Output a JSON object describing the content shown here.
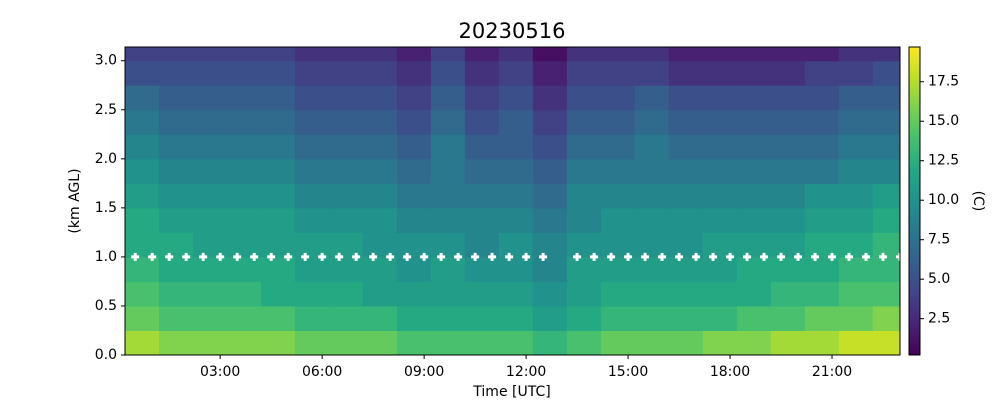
{
  "chart_data": {
    "type": "heatmap",
    "title": "20230516",
    "x_label": "Time [UTC]",
    "y_label": "(km AGL)",
    "colorbar_label": "(C)",
    "colormap": "viridis",
    "x": [
      0.7,
      1.7,
      2.7,
      3.7,
      4.7,
      5.7,
      6.7,
      7.7,
      8.7,
      9.7,
      10.7,
      11.7,
      12.7,
      13.7,
      14.7,
      15.7,
      16.7,
      17.7,
      18.7,
      19.7,
      20.7,
      21.7,
      22.7
    ],
    "y": [
      0.125,
      0.375,
      0.625,
      0.875,
      1.125,
      1.375,
      1.625,
      1.875,
      2.125,
      2.375,
      2.625,
      2.875,
      3.125
    ],
    "z": [
      [
        17,
        16,
        16,
        16,
        16,
        15,
        15,
        15,
        14,
        14,
        14,
        14,
        13,
        14,
        15,
        15,
        15,
        16,
        16,
        17,
        17,
        18,
        18
      ],
      [
        15,
        14,
        14,
        14,
        14,
        13,
        13,
        13,
        12,
        12,
        12,
        12,
        11,
        12,
        13,
        13,
        13,
        13,
        14,
        14,
        15,
        15,
        16
      ],
      [
        14,
        13,
        13,
        13,
        12,
        12,
        12,
        11,
        11,
        11,
        11,
        11,
        10,
        11,
        12,
        12,
        12,
        12,
        12,
        13,
        13,
        14,
        14
      ],
      [
        13,
        12,
        12,
        12,
        12,
        11,
        11,
        11,
        10,
        11,
        10,
        10,
        9,
        11,
        11,
        11,
        11,
        11,
        12,
        12,
        12,
        13,
        13
      ],
      [
        12,
        12,
        11,
        11,
        11,
        11,
        11,
        10,
        10,
        10,
        9,
        10,
        9,
        10,
        10,
        10,
        10,
        11,
        11,
        11,
        12,
        12,
        13
      ],
      [
        12,
        11,
        11,
        11,
        11,
        10,
        10,
        10,
        9,
        9,
        9,
        9,
        8,
        9,
        10,
        10,
        10,
        10,
        10,
        10,
        11,
        11,
        12
      ],
      [
        11,
        10,
        10,
        10,
        10,
        9,
        9,
        9,
        8,
        8,
        8,
        8,
        7,
        9,
        9,
        9,
        9,
        9,
        9,
        9,
        10,
        10,
        11
      ],
      [
        10,
        9,
        9,
        9,
        9,
        8,
        8,
        8,
        7,
        8,
        7,
        7,
        6,
        8,
        8,
        8,
        8,
        8,
        8,
        8,
        8,
        9,
        9
      ],
      [
        9,
        8,
        8,
        8,
        8,
        7,
        7,
        7,
        6,
        8,
        6,
        6,
        5,
        7,
        7,
        8,
        7,
        7,
        7,
        7,
        7,
        8,
        8
      ],
      [
        8,
        7,
        7,
        7,
        7,
        6,
        6,
        6,
        5,
        7,
        5,
        6,
        4,
        6,
        6,
        7,
        6,
        6,
        6,
        6,
        6,
        7,
        7
      ],
      [
        7,
        6,
        6,
        6,
        6,
        5,
        5,
        5,
        4,
        6,
        4,
        5,
        3,
        5,
        5,
        6,
        5,
        5,
        5,
        5,
        5,
        6,
        6
      ],
      [
        5,
        5,
        5,
        5,
        5,
        4,
        4,
        4,
        3,
        5,
        3,
        4,
        2,
        4,
        4,
        4,
        3,
        3,
        3,
        3,
        4,
        4,
        5
      ],
      [
        4,
        4,
        4,
        4,
        4,
        3,
        3,
        3,
        2,
        4,
        2,
        3,
        1,
        3,
        3,
        3,
        2,
        2,
        2,
        2,
        2,
        3,
        3
      ]
    ],
    "markers": {
      "color": "#ffffff",
      "x": [
        0.5,
        1.0,
        1.5,
        2.0,
        2.5,
        3.0,
        3.5,
        4.0,
        4.5,
        5.0,
        5.5,
        6.0,
        6.5,
        7.0,
        7.5,
        8.0,
        8.5,
        9.0,
        9.5,
        10.0,
        10.5,
        11.0,
        11.5,
        12.0,
        12.5,
        13.5,
        14.0,
        14.5,
        15.0,
        15.5,
        16.0,
        16.5,
        17.0,
        17.5,
        18.0,
        18.5,
        19.0,
        19.5,
        20.0,
        20.5,
        21.0,
        21.5,
        22.0,
        22.5,
        23.0
      ],
      "values": [
        1.0,
        1.0,
        1.0,
        1.0,
        1.0,
        1.0,
        1.0,
        1.0,
        1.0,
        1.0,
        1.0,
        1.0,
        1.0,
        1.0,
        1.0,
        1.0,
        1.0,
        1.0,
        1.0,
        1.0,
        1.0,
        1.0,
        1.0,
        1.0,
        1.0,
        1.0,
        1.0,
        1.0,
        1.0,
        1.0,
        1.0,
        1.0,
        1.0,
        1.0,
        1.0,
        1.0,
        1.0,
        1.0,
        1.0,
        1.0,
        1.0,
        1.0,
        1.0,
        1.0,
        1.0
      ]
    },
    "xlim": [
      0.2,
      23.0
    ],
    "ylim": [
      0,
      3.14
    ],
    "clim": [
      0.2,
      19.7
    ],
    "xticks": [
      {
        "value": 3,
        "label": "03:00"
      },
      {
        "value": 6,
        "label": "06:00"
      },
      {
        "value": 9,
        "label": "09:00"
      },
      {
        "value": 12,
        "label": "12:00"
      },
      {
        "value": 15,
        "label": "15:00"
      },
      {
        "value": 18,
        "label": "18:00"
      },
      {
        "value": 21,
        "label": "21:00"
      }
    ],
    "yticks": [
      {
        "value": 0,
        "label": "0.0"
      },
      0.5,
      {
        "value": 1,
        "label": "1.0"
      },
      1.5,
      {
        "value": 2,
        "label": "2.0"
      },
      2.5,
      {
        "value": 3,
        "label": "3.0"
      }
    ],
    "cticks": [
      2.5,
      {
        "value": 5,
        "label": "5.0"
      },
      7.5,
      {
        "value": 10,
        "label": "10.0"
      },
      12.5,
      {
        "value": 15,
        "label": "15.0"
      },
      17.5
    ]
  }
}
